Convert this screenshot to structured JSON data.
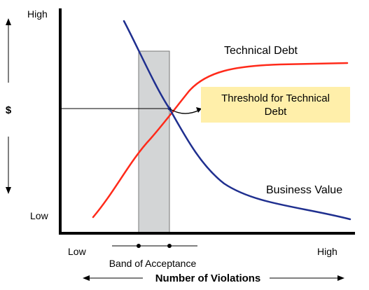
{
  "y_axis": {
    "label": "$",
    "high_label": "High",
    "low_label": "Low"
  },
  "x_axis": {
    "label": "Number of Violations",
    "low_label": "Low",
    "high_label": "High"
  },
  "band": {
    "label": "Band of Acceptance"
  },
  "curves": {
    "technical_debt": {
      "label": "Technical Debt",
      "color": "#ff2a1a"
    },
    "business_value": {
      "label": "Business Value",
      "color": "#1f2f8f"
    }
  },
  "callout": {
    "line1": "Threshold for Technical",
    "line2": "Debt",
    "background": "#ffefaa"
  },
  "colors": {
    "band_fill": "#d3d5d6",
    "axis": "#000000"
  }
}
